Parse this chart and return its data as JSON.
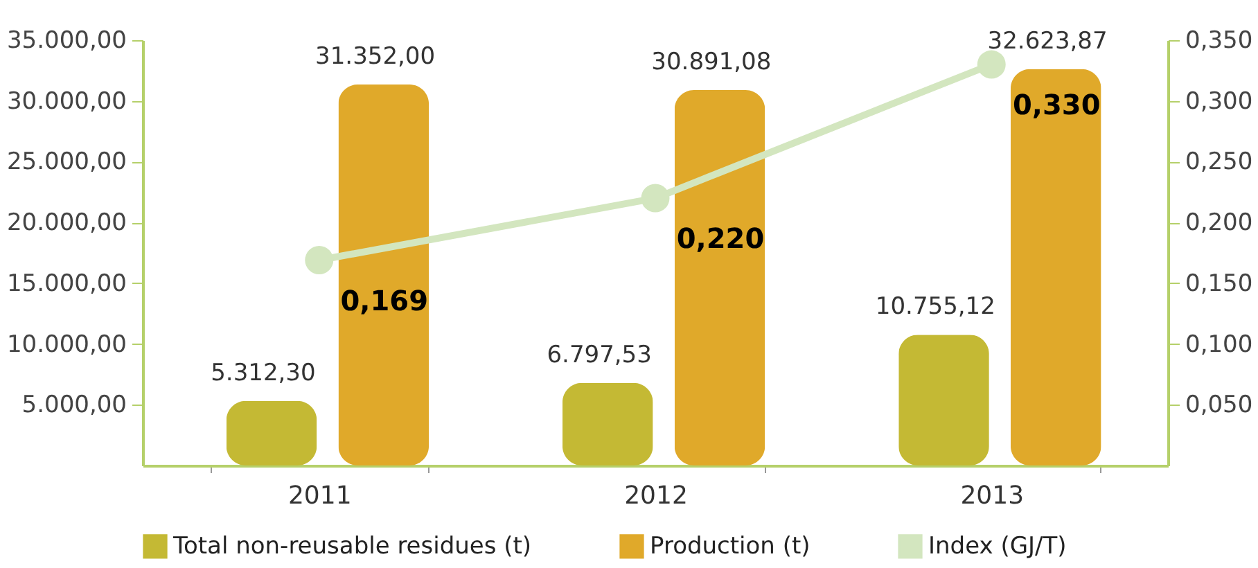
{
  "chart_data": {
    "type": "bar",
    "categories": [
      "2011",
      "2012",
      "2013"
    ],
    "series": [
      {
        "name": "Total non-reusable residues (t)",
        "color": "#c4b934",
        "values": [
          5312.3,
          6797.53,
          10755.12
        ],
        "value_labels": [
          "5.312,30",
          "6.797,53",
          "10.755,12"
        ]
      },
      {
        "name": "Production (t)",
        "color": "#e0a92a",
        "values": [
          31352.0,
          30891.08,
          32623.87
        ],
        "value_labels": [
          "31.352,00",
          "30.891,08",
          "32.623,87"
        ]
      },
      {
        "name": "Index (GJ/T)",
        "type": "line",
        "axis": "y2",
        "color": "#d3e6bf",
        "marker": "circle",
        "values": [
          0.169,
          0.22,
          0.33
        ],
        "value_labels": [
          "0,169",
          "0,220",
          "0,330"
        ]
      }
    ],
    "ylim": [
      0,
      35000
    ],
    "yticks": [
      {
        "value": 5000,
        "label": "5.000,00"
      },
      {
        "value": 10000,
        "label": "10.000,00"
      },
      {
        "value": 15000,
        "label": "15.000,00"
      },
      {
        "value": 20000,
        "label": "20.000,00"
      },
      {
        "value": 25000,
        "label": "25.000,00"
      },
      {
        "value": 30000,
        "label": "30.000,00"
      },
      {
        "value": 35000,
        "label": "35.000,00"
      }
    ],
    "y2lim": [
      0,
      0.35
    ],
    "y2ticks": [
      {
        "value": 0.05,
        "label": "0,050"
      },
      {
        "value": 0.1,
        "label": "0,100"
      },
      {
        "value": 0.15,
        "label": "0,150"
      },
      {
        "value": 0.2,
        "label": "0,200"
      },
      {
        "value": 0.25,
        "label": "0,250"
      },
      {
        "value": 0.3,
        "label": "0,300"
      },
      {
        "value": 0.35,
        "label": "0,350"
      }
    ],
    "grid": false,
    "legend": "bottom"
  }
}
